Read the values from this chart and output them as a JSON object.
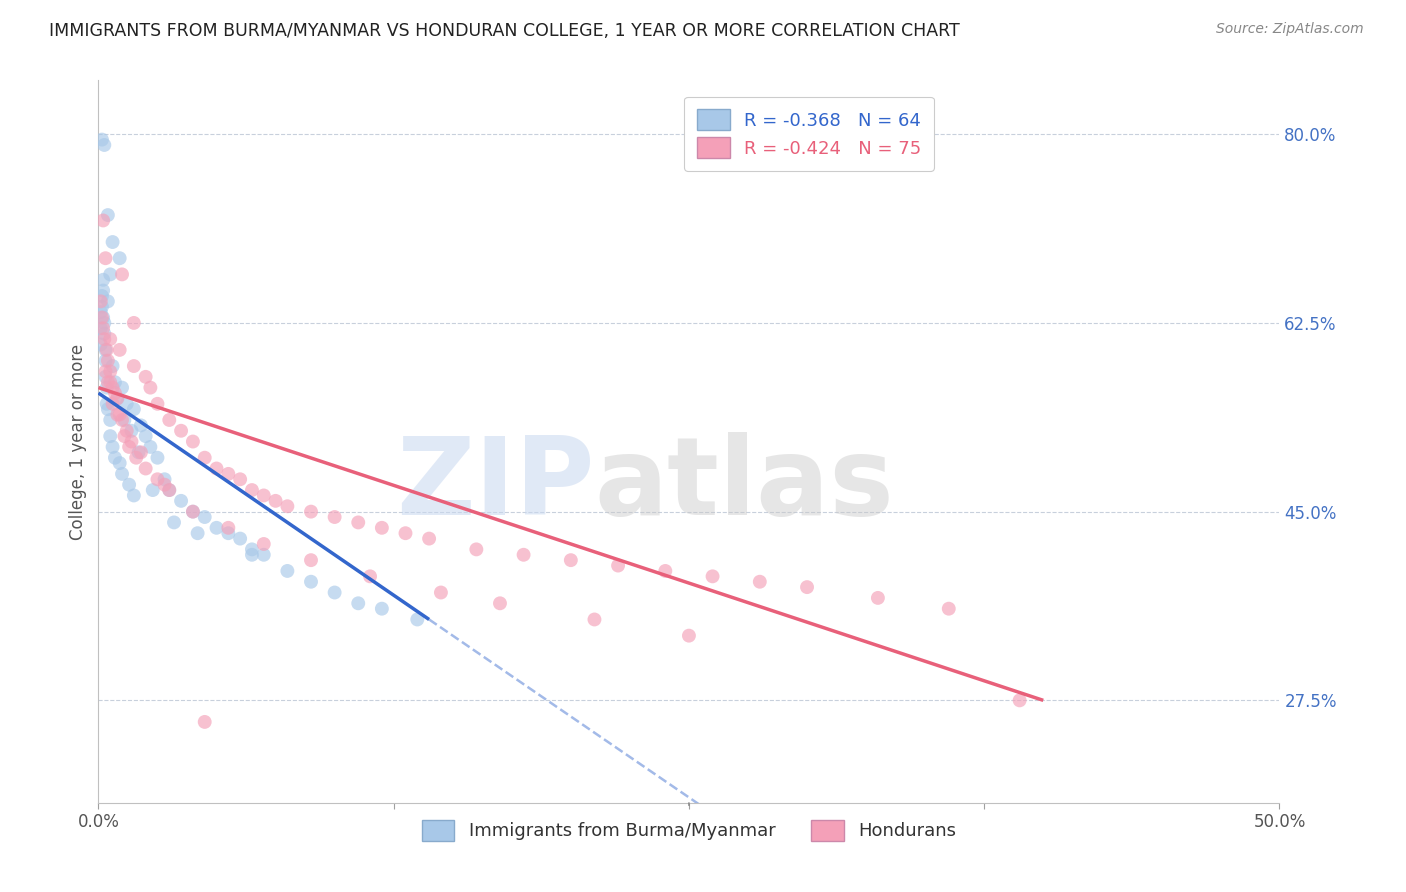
{
  "title": "IMMIGRANTS FROM BURMA/MYANMAR VS HONDURAN COLLEGE, 1 YEAR OR MORE CORRELATION CHART",
  "source": "Source: ZipAtlas.com",
  "ylabel": "College, 1 year or more",
  "right_yticks": [
    27.5,
    45.0,
    62.5,
    80.0
  ],
  "right_ytick_labels": [
    "27.5%",
    "45.0%",
    "62.5%",
    "80.0%"
  ],
  "xmin": 0.0,
  "xmax": 50.0,
  "ymin": 18.0,
  "ymax": 85.0,
  "blue_R": -0.368,
  "blue_N": 64,
  "pink_R": -0.424,
  "pink_N": 75,
  "blue_color": "#a8c8e8",
  "pink_color": "#f4a0b8",
  "blue_line_color": "#3366cc",
  "pink_line_color": "#e8607a",
  "legend_blue_label": "Immigrants from Burma/Myanmar",
  "legend_pink_label": "Hondurans",
  "watermark": "ZIPatlas",
  "watermark_blue": "#c8d8f0",
  "watermark_gray": "#c8c8c8",
  "blue_line_x0": 0.0,
  "blue_line_y0": 56.0,
  "blue_line_x1": 14.0,
  "blue_line_y1": 35.0,
  "pink_line_x0": 0.0,
  "pink_line_y0": 56.5,
  "pink_line_x1": 40.0,
  "pink_line_y1": 27.5,
  "blue_scatter_x": [
    0.1,
    0.1,
    0.1,
    0.15,
    0.15,
    0.2,
    0.2,
    0.2,
    0.25,
    0.25,
    0.3,
    0.3,
    0.3,
    0.35,
    0.35,
    0.4,
    0.4,
    0.5,
    0.5,
    0.5,
    0.6,
    0.6,
    0.7,
    0.7,
    0.8,
    0.9,
    1.0,
    1.0,
    1.2,
    1.3,
    1.5,
    1.5,
    1.8,
    2.0,
    2.2,
    2.5,
    2.8,
    3.0,
    3.5,
    4.0,
    4.5,
    5.0,
    5.5,
    6.0,
    6.5,
    7.0,
    8.0,
    9.0,
    10.0,
    11.0,
    12.0,
    13.5,
    0.15,
    0.25,
    0.4,
    0.6,
    0.9,
    1.1,
    1.4,
    1.7,
    2.3,
    3.2,
    4.2,
    6.5
  ],
  "blue_scatter_y": [
    63.5,
    62.0,
    60.5,
    65.0,
    64.0,
    66.5,
    65.5,
    63.0,
    62.5,
    61.5,
    60.0,
    59.0,
    57.5,
    56.5,
    55.0,
    64.5,
    54.5,
    67.0,
    53.5,
    52.0,
    58.5,
    51.0,
    57.0,
    50.0,
    55.5,
    49.5,
    56.5,
    48.5,
    55.0,
    47.5,
    54.5,
    46.5,
    53.0,
    52.0,
    51.0,
    50.0,
    48.0,
    47.0,
    46.0,
    45.0,
    44.5,
    43.5,
    43.0,
    42.5,
    41.5,
    41.0,
    39.5,
    38.5,
    37.5,
    36.5,
    36.0,
    35.0,
    79.5,
    79.0,
    72.5,
    70.0,
    68.5,
    53.5,
    52.5,
    50.5,
    47.0,
    44.0,
    43.0,
    41.0
  ],
  "pink_scatter_x": [
    0.1,
    0.15,
    0.2,
    0.25,
    0.3,
    0.35,
    0.4,
    0.5,
    0.5,
    0.6,
    0.7,
    0.8,
    0.9,
    1.0,
    1.0,
    1.2,
    1.4,
    1.5,
    1.8,
    2.0,
    2.2,
    2.5,
    3.0,
    3.5,
    4.0,
    4.5,
    5.0,
    5.5,
    6.0,
    6.5,
    7.0,
    7.5,
    8.0,
    9.0,
    10.0,
    11.0,
    12.0,
    13.0,
    14.0,
    16.0,
    18.0,
    20.0,
    22.0,
    24.0,
    26.0,
    28.0,
    30.0,
    33.0,
    36.0,
    39.0,
    0.3,
    0.4,
    0.6,
    0.8,
    1.1,
    1.3,
    1.6,
    2.0,
    2.5,
    3.0,
    4.0,
    5.5,
    7.0,
    9.0,
    11.5,
    14.5,
    17.0,
    21.0,
    25.0,
    0.2,
    0.5,
    0.9,
    1.5,
    2.8,
    4.5
  ],
  "pink_scatter_y": [
    64.5,
    63.0,
    62.0,
    61.0,
    68.5,
    60.0,
    59.0,
    58.0,
    57.0,
    56.5,
    56.0,
    55.5,
    54.0,
    67.0,
    53.5,
    52.5,
    51.5,
    62.5,
    50.5,
    57.5,
    56.5,
    55.0,
    53.5,
    52.5,
    51.5,
    50.0,
    49.0,
    48.5,
    48.0,
    47.0,
    46.5,
    46.0,
    45.5,
    45.0,
    44.5,
    44.0,
    43.5,
    43.0,
    42.5,
    41.5,
    41.0,
    40.5,
    40.0,
    39.5,
    39.0,
    38.5,
    38.0,
    37.0,
    36.0,
    27.5,
    58.0,
    57.0,
    55.0,
    54.0,
    52.0,
    51.0,
    50.0,
    49.0,
    48.0,
    47.0,
    45.0,
    43.5,
    42.0,
    40.5,
    39.0,
    37.5,
    36.5,
    35.0,
    33.5,
    72.0,
    61.0,
    60.0,
    58.5,
    47.5,
    25.5
  ]
}
